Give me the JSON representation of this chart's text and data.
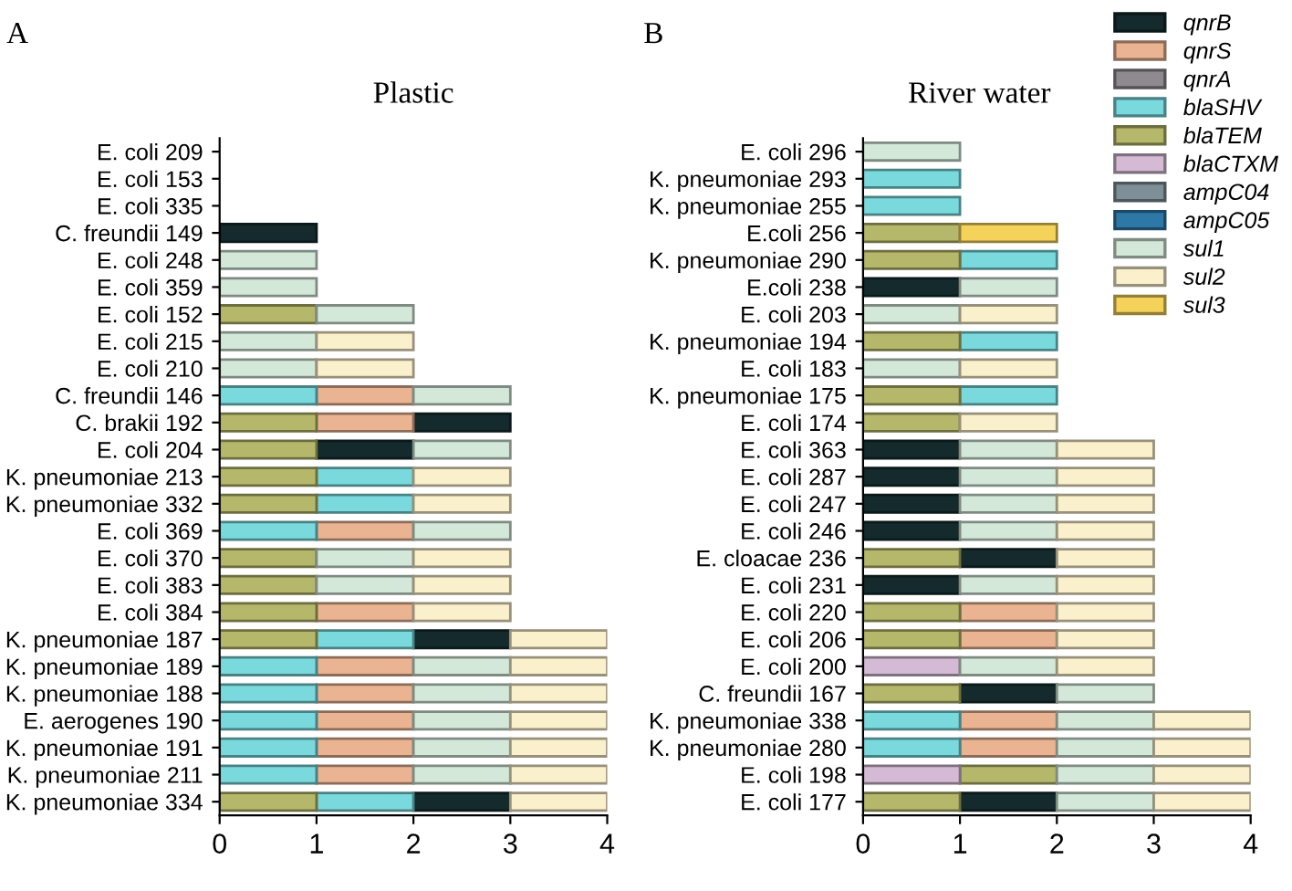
{
  "chart_data": [
    {
      "type": "bar",
      "orientation": "horizontal",
      "title": "Plastic",
      "annotations": [
        "A"
      ],
      "xlim": [
        0,
        4
      ],
      "xticks": [
        0,
        1,
        2,
        3,
        4
      ],
      "grid": false,
      "categories": [
        "E. coli 209",
        "E. coli 153",
        "E. coli 335",
        "C. freundii 149",
        "E. coli 248",
        "E. coli 359",
        "E. coli 152",
        "E. coli 215",
        "E. coli 210",
        "C. freundii 146",
        "C. brakii 192",
        "E. coli 204",
        "K. pneumoniae 213",
        "K. pneumoniae 332",
        "E. coli 369",
        "E. coli 370",
        "E. coli 383",
        "E. coli 384",
        "K. pneumoniae 187",
        "K. pneumoniae 189",
        "K. pneumoniae 188",
        "E. aerogenes 190",
        "K. pneumoniae 191",
        "K. pneumoniae 211",
        "K. pneumoniae 334"
      ],
      "series": [
        {
          "color": "#142a2c",
          "values": [
            null,
            null,
            null,
            1,
            null,
            null,
            null,
            null,
            null,
            null,
            1,
            1,
            null,
            null,
            null,
            null,
            null,
            null,
            1,
            null,
            null,
            null,
            null,
            null,
            1
          ],
          "base": [
            null,
            null,
            null,
            0,
            null,
            null,
            null,
            null,
            null,
            null,
            2,
            1,
            null,
            null,
            null,
            null,
            null,
            null,
            2,
            null,
            null,
            null,
            null,
            null,
            2
          ]
        },
        {
          "color": "#eab493",
          "values": [
            null,
            null,
            null,
            null,
            null,
            null,
            null,
            null,
            null,
            1,
            1,
            null,
            null,
            null,
            1,
            null,
            null,
            1,
            null,
            1,
            1,
            1,
            1,
            1,
            null
          ],
          "base": [
            null,
            null,
            null,
            null,
            null,
            null,
            null,
            null,
            null,
            1,
            1,
            null,
            null,
            null,
            1,
            null,
            null,
            1,
            null,
            1,
            1,
            1,
            1,
            1,
            null
          ]
        },
        {
          "color": "#8f8a90",
          "values": [
            null,
            null,
            null,
            null,
            null,
            null,
            null,
            null,
            null,
            null,
            null,
            null,
            null,
            null,
            null,
            null,
            null,
            null,
            null,
            null,
            null,
            null,
            null,
            null,
            null
          ],
          "base": [
            null,
            null,
            null,
            null,
            null,
            null,
            null,
            null,
            null,
            null,
            null,
            null,
            null,
            null,
            null,
            null,
            null,
            null,
            null,
            null,
            null,
            null,
            null,
            null,
            null
          ]
        },
        {
          "color": "#7ad9dc",
          "values": [
            null,
            null,
            null,
            null,
            null,
            null,
            null,
            null,
            null,
            1,
            null,
            null,
            1,
            1,
            1,
            null,
            null,
            null,
            1,
            1,
            1,
            1,
            1,
            1,
            1
          ],
          "base": [
            null,
            null,
            null,
            null,
            null,
            null,
            null,
            null,
            null,
            0,
            null,
            null,
            1,
            1,
            0,
            null,
            null,
            null,
            1,
            0,
            0,
            0,
            0,
            0,
            1
          ]
        },
        {
          "color": "#b5b86b",
          "values": [
            null,
            null,
            null,
            null,
            null,
            null,
            1,
            null,
            null,
            null,
            1,
            1,
            1,
            1,
            null,
            1,
            1,
            1,
            1,
            null,
            null,
            null,
            null,
            null,
            1
          ],
          "base": [
            null,
            null,
            null,
            null,
            null,
            null,
            0,
            null,
            null,
            null,
            0,
            0,
            0,
            0,
            null,
            0,
            0,
            0,
            0,
            null,
            null,
            null,
            null,
            null,
            0
          ]
        },
        {
          "color": "#d4bad4",
          "values": [
            null,
            null,
            null,
            null,
            null,
            null,
            null,
            null,
            null,
            null,
            null,
            null,
            null,
            null,
            null,
            null,
            null,
            null,
            null,
            null,
            null,
            null,
            null,
            null,
            null
          ],
          "base": [
            null,
            null,
            null,
            null,
            null,
            null,
            null,
            null,
            null,
            null,
            null,
            null,
            null,
            null,
            null,
            null,
            null,
            null,
            null,
            null,
            null,
            null,
            null,
            null,
            null
          ]
        },
        {
          "color": "#7f8f97",
          "values": [
            null,
            null,
            null,
            null,
            null,
            null,
            null,
            null,
            null,
            null,
            null,
            null,
            null,
            null,
            null,
            null,
            null,
            null,
            null,
            null,
            null,
            null,
            null,
            null,
            null
          ],
          "base": [
            null,
            null,
            null,
            null,
            null,
            null,
            null,
            null,
            null,
            null,
            null,
            null,
            null,
            null,
            null,
            null,
            null,
            null,
            null,
            null,
            null,
            null,
            null,
            null,
            null
          ]
        },
        {
          "color": "#2e78a8",
          "values": [
            null,
            null,
            null,
            null,
            null,
            null,
            null,
            null,
            null,
            null,
            null,
            null,
            null,
            null,
            null,
            null,
            null,
            null,
            null,
            null,
            null,
            null,
            null,
            null,
            null
          ],
          "base": [
            null,
            null,
            null,
            null,
            null,
            null,
            null,
            null,
            null,
            null,
            null,
            null,
            null,
            null,
            null,
            null,
            null,
            null,
            null,
            null,
            null,
            null,
            null,
            null,
            null
          ]
        },
        {
          "color": "#d3e8d8",
          "values": [
            null,
            null,
            null,
            null,
            1,
            1,
            1,
            1,
            1,
            1,
            null,
            1,
            null,
            null,
            1,
            1,
            1,
            null,
            null,
            1,
            1,
            1,
            1,
            1,
            null
          ],
          "base": [
            null,
            null,
            null,
            null,
            0,
            0,
            1,
            0,
            0,
            2,
            null,
            2,
            null,
            null,
            2,
            1,
            1,
            null,
            null,
            2,
            2,
            2,
            2,
            2,
            null
          ]
        },
        {
          "color": "#fbf0cc",
          "values": [
            null,
            null,
            null,
            null,
            null,
            null,
            null,
            1,
            1,
            null,
            null,
            null,
            1,
            1,
            null,
            1,
            1,
            1,
            1,
            1,
            1,
            1,
            1,
            1,
            1
          ],
          "base": [
            null,
            null,
            null,
            null,
            null,
            null,
            null,
            1,
            1,
            null,
            null,
            null,
            2,
            2,
            null,
            2,
            2,
            2,
            3,
            3,
            3,
            3,
            3,
            3,
            3
          ]
        },
        {
          "color": "#f5d35a",
          "values": [
            null,
            null,
            null,
            null,
            null,
            null,
            null,
            null,
            null,
            null,
            null,
            null,
            null,
            null,
            null,
            null,
            null,
            null,
            null,
            null,
            null,
            null,
            null,
            null,
            null
          ],
          "base": [
            null,
            null,
            null,
            null,
            null,
            null,
            null,
            null,
            null,
            null,
            null,
            null,
            null,
            null,
            null,
            null,
            null,
            null,
            null,
            null,
            null,
            null,
            null,
            null,
            null
          ]
        }
      ]
    },
    {
      "type": "bar",
      "orientation": "horizontal",
      "title": "River water",
      "annotations": [
        "B"
      ],
      "xlim": [
        0,
        4
      ],
      "xticks": [
        0,
        1,
        2,
        3,
        4
      ],
      "grid": false,
      "legend": "top right",
      "categories": [
        "E. coli 296",
        "K. pneumoniae 293",
        "K. pneumoniae 255",
        "E.coli 256",
        "K. pneumoniae 290",
        "E.coli 238",
        "E. coli 203",
        "K. pneumoniae 194",
        "E. coli 183",
        "K. pneumoniae 175",
        "E. coli 174",
        "E. coli 363",
        "E. coli 287",
        "E. coli 247",
        "E. coli 246",
        "E. cloacae 236",
        "E. coli 231",
        "E. coli 220",
        "E. coli 206",
        "E. coli 200",
        "C. freundii 167",
        "K. pneumoniae 338",
        "K. pneumoniae 280",
        "E. coli 198",
        "E. coli 177"
      ],
      "series": [
        {
          "name": "qnrB",
          "color": "#142a2c",
          "values": [
            null,
            null,
            null,
            null,
            null,
            1,
            null,
            null,
            null,
            null,
            null,
            1,
            1,
            1,
            1,
            1,
            1,
            null,
            null,
            null,
            1,
            null,
            null,
            null,
            1
          ],
          "base": [
            null,
            null,
            null,
            null,
            null,
            0,
            null,
            null,
            null,
            null,
            null,
            0,
            0,
            0,
            0,
            1,
            0,
            null,
            null,
            null,
            1,
            null,
            null,
            null,
            1
          ]
        },
        {
          "name": "qnrS",
          "color": "#eab493",
          "values": [
            null,
            null,
            null,
            null,
            null,
            null,
            null,
            null,
            null,
            null,
            null,
            null,
            null,
            null,
            null,
            null,
            null,
            1,
            1,
            null,
            null,
            1,
            1,
            null,
            null
          ],
          "base": [
            null,
            null,
            null,
            null,
            null,
            null,
            null,
            null,
            null,
            null,
            null,
            null,
            null,
            null,
            null,
            null,
            null,
            1,
            1,
            null,
            null,
            1,
            1,
            null,
            null
          ]
        },
        {
          "name": "qnrA",
          "color": "#8f8a90",
          "values": [
            null,
            null,
            null,
            null,
            null,
            null,
            null,
            null,
            null,
            null,
            null,
            null,
            null,
            null,
            null,
            null,
            null,
            null,
            null,
            null,
            null,
            null,
            null,
            null,
            null
          ],
          "base": [
            null,
            null,
            null,
            null,
            null,
            null,
            null,
            null,
            null,
            null,
            null,
            null,
            null,
            null,
            null,
            null,
            null,
            null,
            null,
            null,
            null,
            null,
            null,
            null,
            null
          ]
        },
        {
          "name": "blaSHV",
          "color": "#7ad9dc",
          "values": [
            null,
            1,
            1,
            null,
            1,
            null,
            null,
            1,
            null,
            1,
            null,
            null,
            null,
            null,
            null,
            null,
            null,
            null,
            null,
            null,
            null,
            1,
            1,
            null,
            null
          ],
          "base": [
            null,
            0,
            0,
            null,
            1,
            null,
            null,
            1,
            null,
            1,
            null,
            null,
            null,
            null,
            null,
            null,
            null,
            null,
            null,
            null,
            null,
            0,
            0,
            null,
            null
          ]
        },
        {
          "name": "blaTEM",
          "color": "#b5b86b",
          "values": [
            null,
            null,
            null,
            1,
            1,
            null,
            null,
            1,
            null,
            1,
            1,
            null,
            null,
            null,
            null,
            1,
            null,
            1,
            1,
            null,
            1,
            null,
            null,
            1,
            1
          ],
          "base": [
            null,
            null,
            null,
            0,
            0,
            null,
            null,
            0,
            null,
            0,
            0,
            null,
            null,
            null,
            null,
            0,
            null,
            0,
            0,
            null,
            0,
            null,
            null,
            1,
            0
          ]
        },
        {
          "name": "blaCTXM",
          "color": "#d4bad4",
          "values": [
            null,
            null,
            null,
            null,
            null,
            null,
            null,
            null,
            null,
            null,
            null,
            null,
            null,
            null,
            null,
            null,
            null,
            null,
            null,
            1,
            null,
            null,
            null,
            1,
            null
          ],
          "base": [
            null,
            null,
            null,
            null,
            null,
            null,
            null,
            null,
            null,
            null,
            null,
            null,
            null,
            null,
            null,
            null,
            null,
            null,
            null,
            0,
            null,
            null,
            null,
            0,
            null
          ]
        },
        {
          "name": "ampC04",
          "color": "#7f8f97",
          "values": [
            null,
            null,
            null,
            null,
            null,
            null,
            null,
            null,
            null,
            null,
            null,
            null,
            null,
            null,
            null,
            null,
            null,
            null,
            null,
            null,
            null,
            null,
            null,
            null,
            null
          ],
          "base": [
            null,
            null,
            null,
            null,
            null,
            null,
            null,
            null,
            null,
            null,
            null,
            null,
            null,
            null,
            null,
            null,
            null,
            null,
            null,
            null,
            null,
            null,
            null,
            null,
            null
          ]
        },
        {
          "name": "ampC05",
          "color": "#2e78a8",
          "values": [
            null,
            null,
            null,
            null,
            null,
            null,
            null,
            null,
            null,
            null,
            null,
            null,
            null,
            null,
            null,
            null,
            null,
            null,
            null,
            null,
            null,
            null,
            null,
            null,
            null
          ],
          "base": [
            null,
            null,
            null,
            null,
            null,
            null,
            null,
            null,
            null,
            null,
            null,
            null,
            null,
            null,
            null,
            null,
            null,
            null,
            null,
            null,
            null,
            null,
            null,
            null,
            null
          ]
        },
        {
          "name": "sul1",
          "color": "#d3e8d8",
          "values": [
            1,
            null,
            null,
            null,
            null,
            1,
            1,
            null,
            1,
            null,
            null,
            1,
            1,
            1,
            1,
            null,
            1,
            null,
            null,
            1,
            1,
            1,
            1,
            1,
            1
          ],
          "base": [
            0,
            null,
            null,
            null,
            null,
            1,
            0,
            null,
            0,
            null,
            null,
            1,
            1,
            1,
            1,
            null,
            1,
            null,
            null,
            1,
            2,
            2,
            2,
            2,
            2
          ]
        },
        {
          "name": "sul2",
          "color": "#fbf0cc",
          "values": [
            null,
            null,
            null,
            null,
            null,
            null,
            1,
            null,
            1,
            null,
            1,
            1,
            1,
            1,
            1,
            1,
            1,
            1,
            1,
            1,
            null,
            1,
            1,
            1,
            1
          ],
          "base": [
            null,
            null,
            null,
            null,
            null,
            null,
            1,
            null,
            1,
            null,
            1,
            2,
            2,
            2,
            2,
            2,
            2,
            2,
            2,
            2,
            null,
            3,
            3,
            3,
            3
          ]
        },
        {
          "name": "sul3",
          "color": "#f5d35a",
          "values": [
            null,
            null,
            null,
            1,
            null,
            null,
            null,
            null,
            null,
            null,
            null,
            null,
            null,
            null,
            null,
            null,
            null,
            null,
            null,
            null,
            null,
            null,
            null,
            null,
            null
          ],
          "base": [
            null,
            null,
            null,
            1,
            null,
            null,
            null,
            null,
            null,
            null,
            null,
            null,
            null,
            null,
            null,
            null,
            null,
            null,
            null,
            null,
            null,
            null,
            null,
            null,
            null
          ]
        }
      ]
    }
  ]
}
